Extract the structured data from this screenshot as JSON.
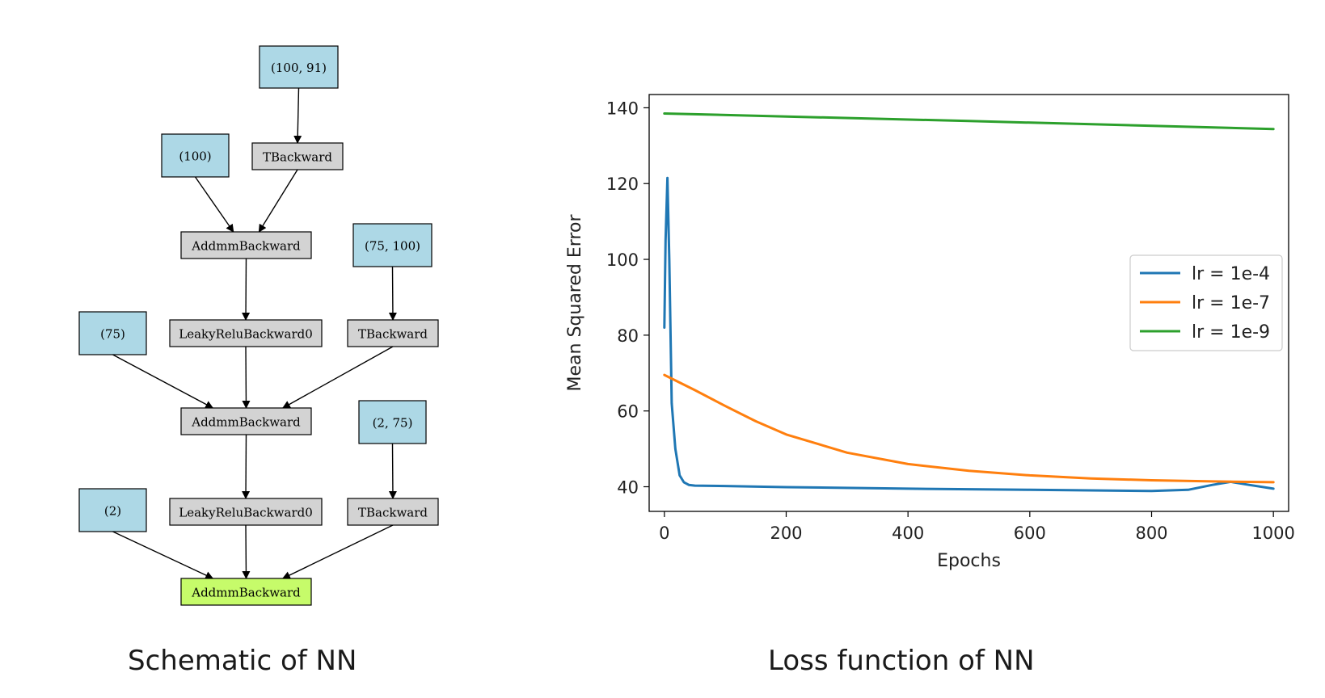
{
  "diagram": {
    "caption": "Schematic of NN",
    "nodes": [
      {
        "id": "n1",
        "label": "(100, 91)",
        "kind": "param"
      },
      {
        "id": "n2",
        "label": "(100)",
        "kind": "param"
      },
      {
        "id": "n3",
        "label": "TBackward",
        "kind": "op"
      },
      {
        "id": "n4",
        "label": "AddmmBackward",
        "kind": "op"
      },
      {
        "id": "n5",
        "label": "(75, 100)",
        "kind": "param"
      },
      {
        "id": "n6",
        "label": "(75)",
        "kind": "param"
      },
      {
        "id": "n7",
        "label": "LeakyReluBackward0",
        "kind": "op"
      },
      {
        "id": "n8",
        "label": "TBackward",
        "kind": "op"
      },
      {
        "id": "n9",
        "label": "AddmmBackward",
        "kind": "op"
      },
      {
        "id": "n10",
        "label": "(2, 75)",
        "kind": "param"
      },
      {
        "id": "n11",
        "label": "(2)",
        "kind": "param"
      },
      {
        "id": "n12",
        "label": "LeakyReluBackward0",
        "kind": "op"
      },
      {
        "id": "n13",
        "label": "TBackward",
        "kind": "op"
      },
      {
        "id": "n14",
        "label": "AddmmBackward",
        "kind": "output"
      }
    ],
    "edges": [
      [
        "n1",
        "n3"
      ],
      [
        "n2",
        "n4"
      ],
      [
        "n3",
        "n4"
      ],
      [
        "n4",
        "n7"
      ],
      [
        "n5",
        "n8"
      ],
      [
        "n6",
        "n9"
      ],
      [
        "n7",
        "n9"
      ],
      [
        "n8",
        "n9"
      ],
      [
        "n9",
        "n12"
      ],
      [
        "n10",
        "n13"
      ],
      [
        "n11",
        "n14"
      ],
      [
        "n12",
        "n14"
      ],
      [
        "n13",
        "n14"
      ]
    ],
    "colors": {
      "param": "#add8e6",
      "op": "#d3d3d3",
      "output": "#c6fb6a"
    }
  },
  "chart_data": {
    "type": "line",
    "title": "",
    "caption": "Loss function of NN",
    "xlabel": "Epochs",
    "ylabel": "Mean Squared Error",
    "xlim": [
      -25,
      1025
    ],
    "ylim": [
      33.5,
      143.5
    ],
    "xticks": [
      0,
      200,
      400,
      600,
      800,
      1000
    ],
    "yticks": [
      40,
      60,
      80,
      100,
      120,
      140
    ],
    "legend": "center-right",
    "grid": false,
    "series": [
      {
        "name": "lr = 1e-4",
        "color": "#1f77b4",
        "x": [
          0,
          2,
          5,
          8,
          12,
          18,
          25,
          32,
          40,
          50,
          100,
          200,
          400,
          600,
          800,
          860,
          900,
          930,
          960,
          1000
        ],
        "y": [
          82,
          105,
          121.5,
          100,
          62,
          50,
          43,
          41.2,
          40.5,
          40.3,
          40.2,
          39.9,
          39.5,
          39.2,
          38.9,
          39.2,
          40.5,
          41.3,
          40.5,
          39.5
        ]
      },
      {
        "name": "lr = 1e-7",
        "color": "#ff7f0e",
        "x": [
          0,
          50,
          100,
          150,
          200,
          300,
          400,
          500,
          600,
          700,
          800,
          900,
          1000
        ],
        "y": [
          69.5,
          65.5,
          61.3,
          57.3,
          53.8,
          49.0,
          46.0,
          44.2,
          43.0,
          42.2,
          41.7,
          41.4,
          41.2
        ]
      },
      {
        "name": "lr = 1e-9",
        "color": "#2ca02c",
        "x": [
          0,
          500,
          1000
        ],
        "y": [
          138.5,
          136.5,
          134.4
        ]
      }
    ]
  }
}
